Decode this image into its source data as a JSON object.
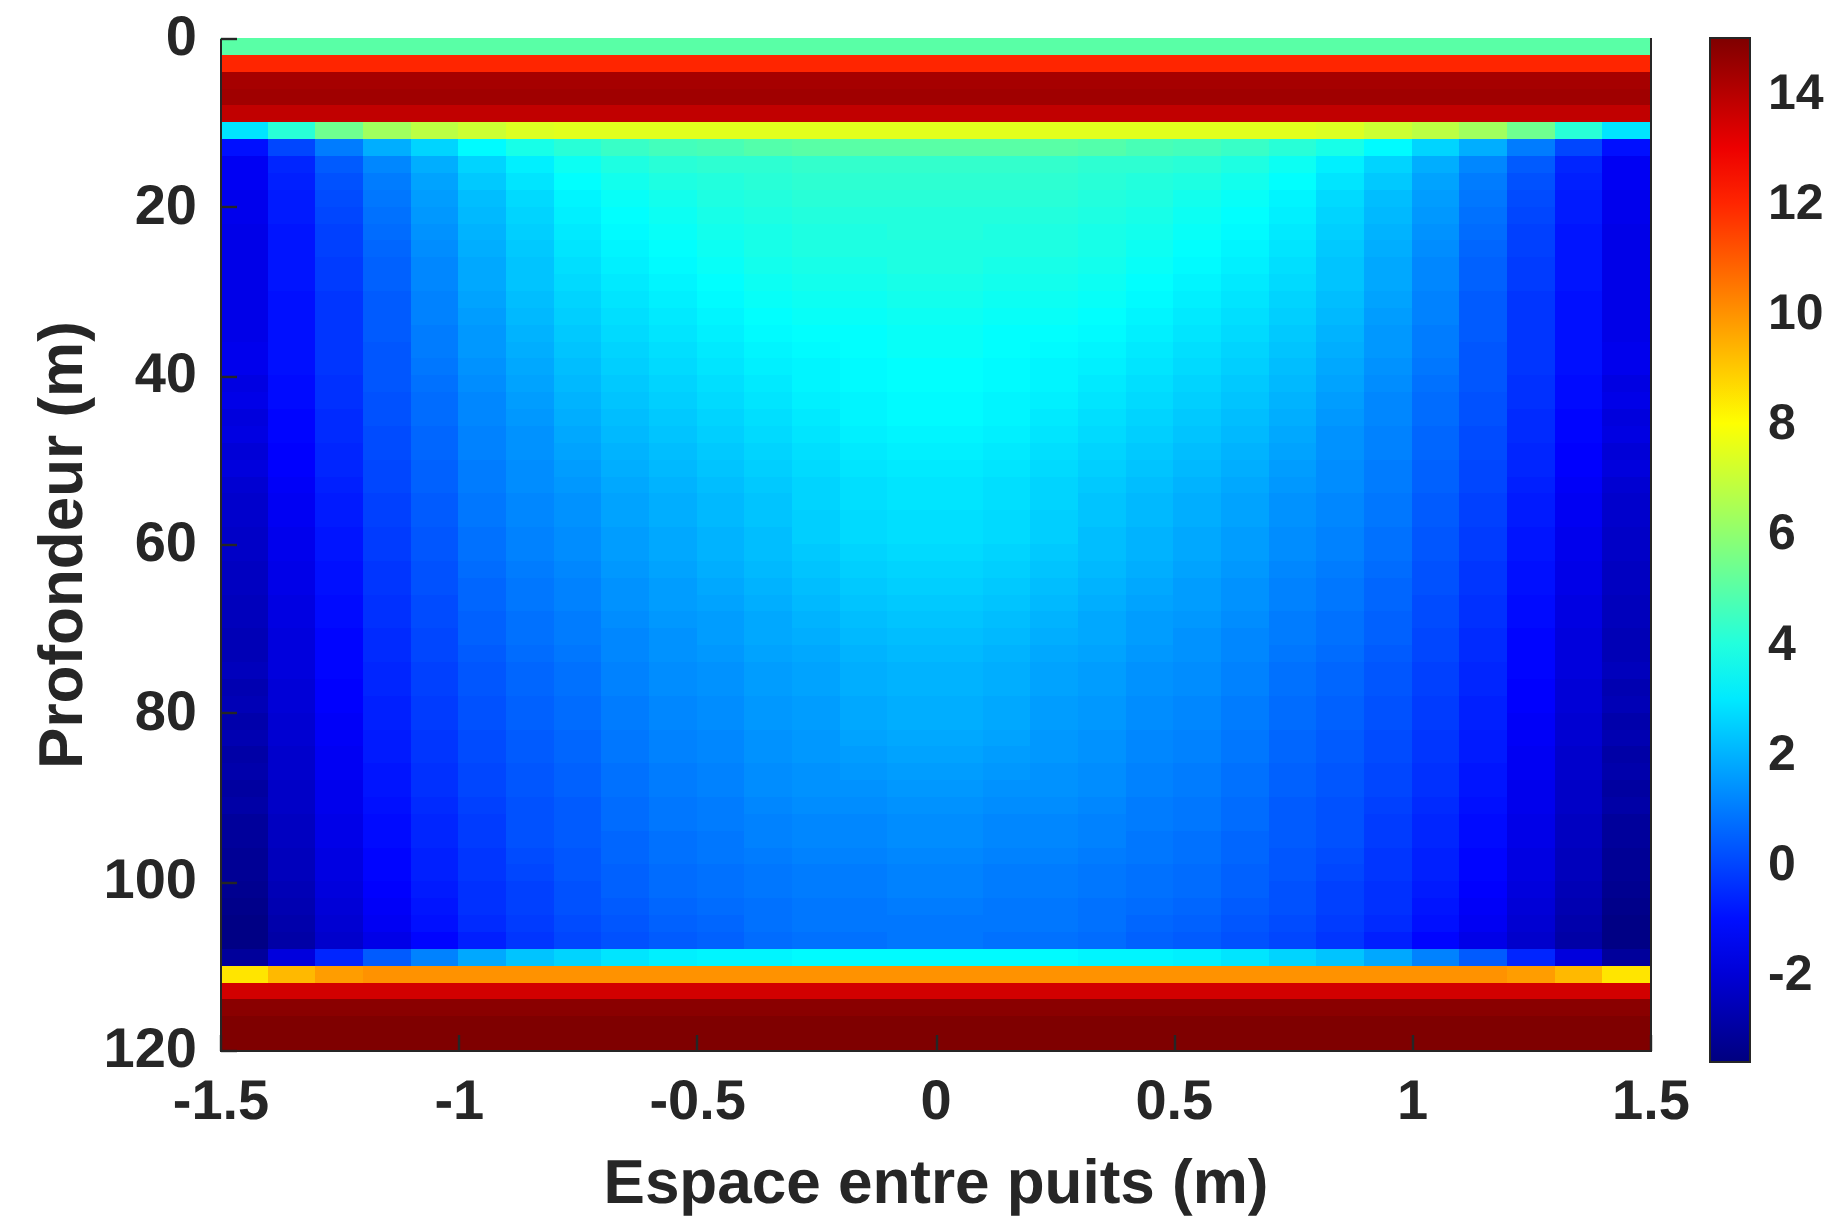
{
  "chart_data": {
    "type": "heatmap",
    "xlabel": "Espace entre puits (m)",
    "ylabel": "Profondeur (m)",
    "xlim": [
      -1.5,
      1.5
    ],
    "xticks": [
      -1.5,
      -1,
      -0.5,
      0,
      0.5,
      1,
      1.5
    ],
    "ylim": [
      120,
      0
    ],
    "yticks": [
      0,
      20,
      40,
      60,
      80,
      100,
      120
    ],
    "clim": [
      -3.6,
      15
    ],
    "cticks": [
      -2,
      0,
      2,
      4,
      6,
      8,
      10,
      12,
      14
    ],
    "cells": [
      [
        5,
        5,
        5,
        5,
        5,
        5,
        5,
        5,
        5,
        5,
        5,
        5,
        5,
        5,
        5,
        5,
        5,
        5,
        5,
        5,
        5,
        5,
        5,
        5,
        5,
        5,
        5,
        5,
        5,
        5
      ],
      [
        12,
        12,
        12,
        12,
        12,
        12,
        12,
        12,
        12,
        12,
        12,
        12,
        12,
        12,
        12,
        12,
        12,
        12,
        12,
        12,
        12,
        12,
        12,
        12,
        12,
        12,
        12,
        12,
        12,
        12
      ],
      [
        14.3,
        14.3,
        14.3,
        14.3,
        14.3,
        14.3,
        14.3,
        14.3,
        14.3,
        14.3,
        14.3,
        14.3,
        14.3,
        14.3,
        14.3,
        14.3,
        14.3,
        14.3,
        14.3,
        14.3,
        14.3,
        14.3,
        14.3,
        14.3,
        14.3,
        14.3,
        14.3,
        14.3,
        14.3,
        14.3
      ],
      [
        14.4,
        14.4,
        14.4,
        14.4,
        14.4,
        14.4,
        14.4,
        14.4,
        14.4,
        14.4,
        14.4,
        14.4,
        14.4,
        14.4,
        14.4,
        14.4,
        14.4,
        14.4,
        14.4,
        14.4,
        14.4,
        14.4,
        14.4,
        14.4,
        14.4,
        14.4,
        14.4,
        14.4,
        14.4,
        14.4
      ],
      [
        13.8,
        13.8,
        13.8,
        13.8,
        13.8,
        13.8,
        13.8,
        13.8,
        13.8,
        13.8,
        13.8,
        13.8,
        13.8,
        13.8,
        13.8,
        13.8,
        13.8,
        13.8,
        13.8,
        13.8,
        13.8,
        13.8,
        13.8,
        13.8,
        13.8,
        13.8,
        13.8,
        13.8,
        13.8,
        13.8
      ],
      [
        2.9,
        4.1,
        5.4,
        6.3,
        6.8,
        7.1,
        7.4,
        7.5,
        7.5,
        7.5,
        7.5,
        7.5,
        7.5,
        7.5,
        7.5,
        7.5,
        7.5,
        7.5,
        7.5,
        7.5,
        7.5,
        7.5,
        7.5,
        7.4,
        7.1,
        6.8,
        6.3,
        5.4,
        4.1,
        2.9
      ],
      [
        -1,
        0,
        1,
        1.9,
        2.6,
        3.3,
        3.8,
        4.1,
        4.4,
        4.6,
        4.7,
        4.9,
        5,
        5,
        5,
        5,
        5,
        5,
        4.9,
        4.7,
        4.6,
        4.4,
        4.1,
        3.8,
        3.3,
        2.6,
        1.9,
        1,
        0,
        -1
      ],
      [
        -1.5,
        -0.6,
        0.4,
        1.2,
        1.9,
        2.6,
        3.1,
        3.6,
        3.9,
        4.1,
        4.2,
        4.2,
        4.3,
        4.3,
        4.3,
        4.3,
        4.3,
        4.3,
        4.2,
        4.2,
        4.1,
        3.9,
        3.6,
        3.1,
        2.6,
        1.9,
        1.2,
        0.4,
        -0.6,
        -1.5
      ],
      [
        -1.5,
        -0.7,
        0.2,
        1,
        1.7,
        2.4,
        2.9,
        3.4,
        3.7,
        3.9,
        4,
        4.1,
        4.2,
        4.2,
        4.2,
        4.2,
        4.2,
        4.2,
        4.1,
        4,
        3.9,
        3.7,
        3.4,
        2.9,
        2.4,
        1.7,
        1,
        0.2,
        -0.7,
        -1.5
      ],
      [
        -1.6,
        -0.8,
        0.1,
        0.9,
        1.6,
        2.2,
        2.7,
        3.2,
        3.5,
        3.7,
        3.9,
        4,
        4.1,
        4.1,
        4.1,
        4.1,
        4.1,
        4.1,
        4,
        3.9,
        3.7,
        3.5,
        3.2,
        2.7,
        2.2,
        1.6,
        0.9,
        0.1,
        -0.8,
        -1.6
      ],
      [
        -1.6,
        -0.8,
        0,
        0.8,
        1.5,
        2.1,
        2.6,
        3.1,
        3.4,
        3.6,
        3.8,
        3.9,
        4,
        4,
        4,
        4,
        4,
        4,
        3.9,
        3.8,
        3.6,
        3.4,
        3.1,
        2.6,
        2.1,
        1.5,
        0.8,
        0,
        -0.8,
        -1.6
      ],
      [
        -1.7,
        -0.9,
        -0.1,
        0.7,
        1.4,
        2,
        2.5,
        3,
        3.3,
        3.5,
        3.7,
        3.8,
        3.9,
        3.9,
        4,
        4,
        3.9,
        3.9,
        3.8,
        3.7,
        3.5,
        3.3,
        3,
        2.5,
        2,
        1.4,
        0.7,
        -0.1,
        -0.9,
        -1.7
      ],
      [
        -1.7,
        -0.9,
        -0.1,
        0.6,
        1.3,
        1.9,
        2.4,
        2.9,
        3.2,
        3.4,
        3.6,
        3.8,
        3.9,
        3.9,
        3.9,
        3.9,
        3.9,
        3.9,
        3.8,
        3.6,
        3.4,
        3.2,
        2.9,
        2.4,
        1.9,
        1.3,
        0.6,
        -0.1,
        -0.9,
        -1.7
      ],
      [
        -1.7,
        -0.9,
        -0.2,
        0.5,
        1.2,
        1.8,
        2.3,
        2.8,
        3.1,
        3.3,
        3.5,
        3.7,
        3.8,
        3.8,
        3.9,
        3.9,
        3.8,
        3.8,
        3.7,
        3.5,
        3.3,
        3.1,
        2.8,
        2.3,
        1.8,
        1.2,
        0.5,
        -0.2,
        -0.9,
        -1.7
      ],
      [
        -1.7,
        -0.9,
        -0.2,
        0.5,
        1.2,
        1.8,
        2.3,
        2.7,
        3,
        3.2,
        3.4,
        3.6,
        3.7,
        3.7,
        3.8,
        3.8,
        3.7,
        3.7,
        3.6,
        3.4,
        3.2,
        3,
        2.7,
        2.3,
        1.8,
        1.2,
        0.5,
        -0.2,
        -0.9,
        -1.7
      ],
      [
        -1.7,
        -1,
        -0.3,
        0.4,
        1.1,
        1.7,
        2.2,
        2.6,
        2.9,
        3.1,
        3.3,
        3.5,
        3.6,
        3.6,
        3.7,
        3.7,
        3.6,
        3.6,
        3.5,
        3.3,
        3.1,
        2.9,
        2.6,
        2.2,
        1.7,
        1.1,
        0.4,
        -0.3,
        -1,
        -1.7
      ],
      [
        -1.7,
        -1,
        -0.3,
        0.4,
        1.1,
        1.6,
        2.1,
        2.5,
        2.8,
        3,
        3.2,
        3.4,
        3.5,
        3.5,
        3.6,
        3.6,
        3.5,
        3.5,
        3.4,
        3.2,
        3,
        2.8,
        2.5,
        2.1,
        1.6,
        1.1,
        0.4,
        -0.3,
        -1,
        -1.7
      ],
      [
        -1.7,
        -1,
        -0.3,
        0.4,
        1,
        1.5,
        2,
        2.4,
        2.7,
        2.9,
        3.1,
        3.3,
        3.4,
        3.4,
        3.5,
        3.5,
        3.4,
        3.4,
        3.3,
        3.1,
        2.9,
        2.7,
        2.4,
        2,
        1.5,
        1,
        0.4,
        -0.3,
        -1,
        -1.7
      ],
      [
        -1.6,
        -1,
        -0.3,
        0.3,
        1,
        1.5,
        1.9,
        2.3,
        2.6,
        2.8,
        3,
        3.2,
        3.3,
        3.4,
        3.5,
        3.5,
        3.4,
        3.3,
        3.2,
        3,
        2.8,
        2.6,
        2.3,
        1.9,
        1.5,
        1,
        0.3,
        -0.3,
        -1,
        -1.6
      ],
      [
        -1.6,
        -1,
        -0.3,
        0.3,
        0.9,
        1.4,
        1.8,
        2.2,
        2.5,
        2.7,
        2.9,
        3.1,
        3.2,
        3.3,
        3.4,
        3.4,
        3.3,
        3.2,
        3.1,
        2.9,
        2.7,
        2.5,
        2.2,
        1.8,
        1.4,
        0.9,
        0.3,
        -0.3,
        -1,
        -1.6
      ],
      [
        -1.8,
        -1.1,
        -0.4,
        0.3,
        0.8,
        1.3,
        1.7,
        2.1,
        2.4,
        2.6,
        2.8,
        3,
        3.2,
        3.3,
        3.4,
        3.4,
        3.3,
        3.2,
        3,
        2.8,
        2.6,
        2.4,
        2.1,
        1.7,
        1.3,
        0.8,
        0.3,
        -0.4,
        -1.1,
        -1.8
      ],
      [
        -1.7,
        -1.1,
        -0.4,
        0.2,
        0.7,
        1.2,
        1.6,
        2,
        2.3,
        2.5,
        2.7,
        2.9,
        3.1,
        3.2,
        3.3,
        3.3,
        3.2,
        3.1,
        2.9,
        2.7,
        2.5,
        2.3,
        2,
        1.6,
        1.2,
        0.7,
        0.2,
        -0.4,
        -1.1,
        -1.7
      ],
      [
        -1.9,
        -1.2,
        -0.5,
        0.2,
        0.7,
        1.2,
        1.5,
        1.9,
        2.2,
        2.4,
        2.6,
        2.8,
        3,
        3.2,
        3.3,
        3.3,
        3.2,
        3,
        2.8,
        2.6,
        2.4,
        2.2,
        1.9,
        1.5,
        1.2,
        0.7,
        0.2,
        -0.5,
        -1.2,
        -1.9
      ],
      [
        -1.8,
        -1.2,
        -0.5,
        0.1,
        0.6,
        1.1,
        1.4,
        1.8,
        2.1,
        2.3,
        2.5,
        2.7,
        2.9,
        3.1,
        3.2,
        3.2,
        3.1,
        2.9,
        2.7,
        2.5,
        2.3,
        2.1,
        1.8,
        1.4,
        1.1,
        0.6,
        0.1,
        -0.5,
        -1.2,
        -1.8
      ],
      [
        -2,
        -1.3,
        -0.6,
        0.1,
        0.6,
        1.1,
        1.4,
        1.7,
        2,
        2.2,
        2.4,
        2.6,
        2.8,
        3,
        3.1,
        3.1,
        3,
        2.8,
        2.6,
        2.4,
        2.2,
        2,
        1.7,
        1.4,
        1.1,
        0.6,
        0.1,
        -0.6,
        -1.3,
        -2
      ],
      [
        -1.9,
        -1.3,
        -0.6,
        0,
        0.5,
        1,
        1.3,
        1.6,
        1.9,
        2.1,
        2.3,
        2.5,
        2.7,
        2.9,
        3,
        3,
        2.9,
        2.7,
        2.5,
        2.3,
        2.1,
        1.9,
        1.6,
        1.3,
        1,
        0.5,
        0,
        -0.6,
        -1.3,
        -1.9
      ],
      [
        -2.1,
        -1.4,
        -0.7,
        0,
        0.5,
        1,
        1.3,
        1.5,
        1.8,
        2,
        2.2,
        2.4,
        2.6,
        2.8,
        2.9,
        2.9,
        2.8,
        2.6,
        2.4,
        2.2,
        2,
        1.8,
        1.5,
        1.3,
        1,
        0.5,
        0,
        -0.7,
        -1.4,
        -2.1
      ],
      [
        -2.2,
        -1.5,
        -0.8,
        -0.1,
        0.4,
        0.9,
        1.2,
        1.4,
        1.7,
        1.9,
        2.1,
        2.3,
        2.6,
        2.8,
        2.9,
        2.9,
        2.8,
        2.6,
        2.3,
        2.1,
        1.9,
        1.7,
        1.4,
        1.2,
        0.9,
        0.4,
        -0.1,
        -0.8,
        -1.5,
        -2.2
      ],
      [
        -2.2,
        -1.5,
        -0.8,
        -0.1,
        0.4,
        0.9,
        1.2,
        1.4,
        1.7,
        1.9,
        2.1,
        2.3,
        2.5,
        2.7,
        2.8,
        2.8,
        2.7,
        2.5,
        2.3,
        2.1,
        1.9,
        1.7,
        1.4,
        1.2,
        0.9,
        0.4,
        -0.1,
        -0.8,
        -1.5,
        -2.2
      ],
      [
        -2.3,
        -1.6,
        -0.9,
        -0.2,
        0.3,
        0.8,
        1.1,
        1.3,
        1.6,
        1.8,
        2,
        2.2,
        2.5,
        2.7,
        2.8,
        2.8,
        2.7,
        2.5,
        2.2,
        2,
        1.8,
        1.6,
        1.3,
        1.1,
        0.8,
        0.3,
        -0.2,
        -0.9,
        -1.6,
        -2.3
      ],
      [
        -2.3,
        -1.6,
        -0.9,
        -0.2,
        0.3,
        0.8,
        1.1,
        1.3,
        1.6,
        1.8,
        2,
        2.2,
        2.4,
        2.6,
        2.7,
        2.7,
        2.6,
        2.4,
        2.2,
        2,
        1.8,
        1.6,
        1.3,
        1.1,
        0.8,
        0.3,
        -0.2,
        -0.9,
        -1.6,
        -2.3
      ],
      [
        -2.4,
        -1.7,
        -1,
        -0.3,
        0.2,
        0.7,
        1,
        1.2,
        1.5,
        1.7,
        1.9,
        2.1,
        2.3,
        2.5,
        2.6,
        2.6,
        2.5,
        2.3,
        2.1,
        1.9,
        1.7,
        1.5,
        1.2,
        1,
        0.7,
        0.2,
        -0.3,
        -1,
        -1.7,
        -2.4
      ],
      [
        -2.4,
        -1.7,
        -1,
        -0.3,
        0.2,
        0.6,
        0.9,
        1.1,
        1.4,
        1.6,
        1.8,
        2,
        2.2,
        2.4,
        2.5,
        2.5,
        2.4,
        2.2,
        2,
        1.8,
        1.6,
        1.4,
        1.1,
        0.9,
        0.6,
        0.2,
        -0.3,
        -1,
        -1.7,
        -2.4
      ],
      [
        -2.5,
        -1.8,
        -1.1,
        -0.4,
        0.1,
        0.6,
        0.9,
        1.1,
        1.4,
        1.6,
        1.7,
        1.9,
        2.1,
        2.3,
        2.4,
        2.4,
        2.3,
        2.1,
        1.9,
        1.7,
        1.6,
        1.4,
        1.1,
        0.9,
        0.6,
        0.1,
        -0.4,
        -1.1,
        -1.8,
        -2.5
      ],
      [
        -2.5,
        -1.8,
        -1.1,
        -0.4,
        0.1,
        0.5,
        0.8,
        1,
        1.3,
        1.5,
        1.6,
        1.8,
        2,
        2.2,
        2.3,
        2.3,
        2.2,
        2,
        1.8,
        1.6,
        1.5,
        1.3,
        1,
        0.8,
        0.5,
        0.1,
        -0.4,
        -1.1,
        -1.8,
        -2.5
      ],
      [
        -2.6,
        -1.9,
        -1.2,
        -0.5,
        0,
        0.5,
        0.8,
        1,
        1.2,
        1.4,
        1.6,
        1.8,
        1.9,
        2.1,
        2.2,
        2.2,
        2.1,
        1.9,
        1.8,
        1.6,
        1.4,
        1.2,
        1,
        0.8,
        0.5,
        0,
        -0.5,
        -1.2,
        -1.9,
        -2.6
      ],
      [
        -2.6,
        -1.9,
        -1.2,
        -0.5,
        0,
        0.4,
        0.7,
        0.9,
        1.2,
        1.4,
        1.5,
        1.7,
        1.8,
        2,
        2.1,
        2.1,
        2,
        1.8,
        1.7,
        1.5,
        1.4,
        1.2,
        0.9,
        0.7,
        0.4,
        0,
        -0.5,
        -1.2,
        -1.9,
        -2.6
      ],
      [
        -2.5,
        -1.9,
        -1.2,
        -0.6,
        -0.1,
        0.3,
        0.6,
        0.8,
        1.1,
        1.3,
        1.4,
        1.6,
        1.7,
        1.9,
        2,
        2,
        1.9,
        1.7,
        1.6,
        1.4,
        1.3,
        1.1,
        0.8,
        0.6,
        0.3,
        -0.1,
        -0.6,
        -1.2,
        -1.9,
        -2.5
      ],
      [
        -2.7,
        -2,
        -1.3,
        -0.6,
        -0.1,
        0.3,
        0.6,
        0.8,
        1.1,
        1.3,
        1.4,
        1.6,
        1.7,
        1.9,
        2,
        2,
        1.9,
        1.7,
        1.6,
        1.4,
        1.3,
        1.1,
        0.8,
        0.6,
        0.3,
        -0.1,
        -0.6,
        -1.3,
        -2,
        -2.7
      ],
      [
        -2.6,
        -2,
        -1.3,
        -0.7,
        -0.2,
        0.2,
        0.5,
        0.7,
        1,
        1.2,
        1.3,
        1.5,
        1.6,
        1.8,
        1.9,
        1.9,
        1.8,
        1.6,
        1.5,
        1.3,
        1.2,
        1,
        0.7,
        0.5,
        0.2,
        -0.2,
        -0.7,
        -1.3,
        -2,
        -2.6
      ],
      [
        -2.8,
        -2.1,
        -1.4,
        -0.7,
        -0.2,
        0.2,
        0.5,
        0.7,
        1,
        1.2,
        1.3,
        1.5,
        1.6,
        1.8,
        1.9,
        1.9,
        1.8,
        1.6,
        1.5,
        1.3,
        1.2,
        1,
        0.7,
        0.5,
        0.2,
        -0.2,
        -0.7,
        -1.4,
        -2.1,
        -2.8
      ],
      [
        -2.7,
        -2.1,
        -1.4,
        -0.8,
        -0.3,
        0.1,
        0.4,
        0.6,
        0.9,
        1.1,
        1.2,
        1.4,
        1.5,
        1.7,
        1.8,
        1.8,
        1.7,
        1.5,
        1.4,
        1.2,
        1.1,
        0.9,
        0.6,
        0.4,
        0.1,
        -0.3,
        -0.8,
        -1.4,
        -2.1,
        -2.7
      ],
      [
        -2.9,
        -2.2,
        -1.5,
        -0.8,
        -0.3,
        0.1,
        0.4,
        0.6,
        0.9,
        1.1,
        1.2,
        1.4,
        1.5,
        1.6,
        1.7,
        1.7,
        1.6,
        1.5,
        1.4,
        1.2,
        1.1,
        0.9,
        0.6,
        0.4,
        0.1,
        -0.3,
        -0.8,
        -1.5,
        -2.2,
        -2.9
      ],
      [
        -2.8,
        -2.2,
        -1.5,
        -0.9,
        -0.4,
        0,
        0.3,
        0.5,
        0.8,
        1,
        1.1,
        1.3,
        1.4,
        1.5,
        1.6,
        1.6,
        1.5,
        1.4,
        1.3,
        1.1,
        1,
        0.8,
        0.5,
        0.3,
        0,
        -0.4,
        -0.9,
        -1.5,
        -2.2,
        -2.8
      ],
      [
        -3,
        -2.3,
        -1.6,
        -0.9,
        -0.4,
        0,
        0.3,
        0.5,
        0.8,
        1,
        1.1,
        1.3,
        1.4,
        1.4,
        1.5,
        1.5,
        1.4,
        1.4,
        1.3,
        1.1,
        1,
        0.8,
        0.5,
        0.3,
        0,
        -0.4,
        -0.9,
        -1.6,
        -2.3,
        -3
      ],
      [
        -2.9,
        -2.3,
        -1.6,
        -1,
        -0.5,
        -0.1,
        0.2,
        0.4,
        0.7,
        0.9,
        1,
        1.2,
        1.3,
        1.3,
        1.4,
        1.4,
        1.3,
        1.3,
        1.2,
        1,
        0.9,
        0.7,
        0.4,
        0.2,
        -0.1,
        -0.5,
        -1,
        -1.6,
        -2.3,
        -2.9
      ],
      [
        -3.1,
        -2.4,
        -1.7,
        -1.1,
        -0.6,
        -0.2,
        0.2,
        0.4,
        0.7,
        0.9,
        1,
        1.1,
        1.2,
        1.2,
        1.3,
        1.3,
        1.2,
        1.2,
        1.1,
        1,
        0.9,
        0.7,
        0.4,
        0.2,
        -0.2,
        -0.6,
        -1.1,
        -1.7,
        -2.4,
        -3.1
      ],
      [
        -3.1,
        -2.4,
        -1.7,
        -1.1,
        -0.6,
        -0.2,
        0.2,
        0.4,
        0.6,
        0.8,
        0.9,
        1.1,
        1.2,
        1.2,
        1.3,
        1.3,
        1.2,
        1.2,
        1.1,
        0.9,
        0.8,
        0.6,
        0.4,
        0.2,
        -0.2,
        -0.6,
        -1.1,
        -1.7,
        -2.4,
        -3.1
      ],
      [
        -3.2,
        -2.5,
        -1.8,
        -1.2,
        -0.7,
        -0.3,
        0.1,
        0.3,
        0.6,
        0.8,
        0.9,
        1,
        1.1,
        1.1,
        1.2,
        1.2,
        1.1,
        1.1,
        1,
        0.9,
        0.8,
        0.6,
        0.3,
        0.1,
        -0.3,
        -0.7,
        -1.2,
        -1.8,
        -2.5,
        -3.2
      ],
      [
        -3.2,
        -2.5,
        -1.8,
        -1.2,
        -0.7,
        -0.3,
        0,
        0.3,
        0.5,
        0.7,
        0.8,
        0.9,
        1,
        1,
        1.1,
        1.1,
        1,
        1,
        0.9,
        0.8,
        0.7,
        0.5,
        0.3,
        0,
        -0.3,
        -0.7,
        -1.2,
        -1.8,
        -2.5,
        -3.2
      ],
      [
        -3.3,
        -2.6,
        -1.9,
        -1.3,
        -0.8,
        -0.4,
        -0.1,
        0.2,
        0.5,
        0.7,
        0.8,
        0.9,
        1,
        1,
        1.1,
        1.1,
        1,
        1,
        0.9,
        0.8,
        0.7,
        0.5,
        0.2,
        -0.1,
        -0.4,
        -0.8,
        -1.3,
        -1.9,
        -2.6,
        -3.3
      ],
      [
        -3.4,
        -2.7,
        -2,
        -1.4,
        -0.9,
        -0.4,
        -0.1,
        0.2,
        0.4,
        0.6,
        0.7,
        0.8,
        0.9,
        0.9,
        1,
        1,
        0.9,
        0.9,
        0.8,
        0.7,
        0.6,
        0.4,
        0.2,
        -0.1,
        -0.4,
        -0.9,
        -1.4,
        -2,
        -2.7,
        -3.4
      ],
      [
        -3.5,
        -2.8,
        -2.1,
        -1.5,
        -1,
        -0.5,
        -0.2,
        0.1,
        0.3,
        0.5,
        0.6,
        0.8,
        0.9,
        0.9,
        0.9,
        0.9,
        0.9,
        0.9,
        0.8,
        0.6,
        0.5,
        0.3,
        0.1,
        -0.2,
        -0.5,
        -1,
        -1.5,
        -2.1,
        -2.8,
        -3.5
      ],
      [
        -3.5,
        -2.9,
        -2.2,
        -1.7,
        -1.2,
        -0.7,
        -0.3,
        0,
        0.2,
        0.4,
        0.5,
        0.7,
        0.8,
        0.8,
        0.9,
        0.9,
        0.8,
        0.8,
        0.7,
        0.5,
        0.4,
        0.2,
        0,
        -0.3,
        -0.7,
        -1.2,
        -1.7,
        -2.2,
        -2.9,
        -3.5
      ],
      [
        -3.1,
        -1.9,
        -0.6,
        0.4,
        1.1,
        1.8,
        2.3,
        2.6,
        2.9,
        3.1,
        3.2,
        3.2,
        3.3,
        3.3,
        3.3,
        3.3,
        3.3,
        3.3,
        3.2,
        3.2,
        3.1,
        2.9,
        2.6,
        2.3,
        1.8,
        1.1,
        0.4,
        -0.6,
        -1.9,
        -3.1
      ],
      [
        8.5,
        9.3,
        9.8,
        10,
        10,
        10,
        10,
        10,
        10,
        10,
        10,
        10,
        10,
        10,
        10,
        10,
        10,
        10,
        10,
        10,
        10,
        10,
        10,
        10,
        10,
        10,
        10,
        9.8,
        9.3,
        8.5
      ],
      [
        13.5,
        13.5,
        13.5,
        13.5,
        13.5,
        13.5,
        13.5,
        13.5,
        13.5,
        13.5,
        13.5,
        13.5,
        13.5,
        13.5,
        13.5,
        13.5,
        13.5,
        13.5,
        13.5,
        13.5,
        13.5,
        13.5,
        13.5,
        13.5,
        13.5,
        13.5,
        13.5,
        13.5,
        13.5,
        13.5
      ],
      [
        14.8,
        14.8,
        14.8,
        14.8,
        14.8,
        14.8,
        14.8,
        14.8,
        14.8,
        14.8,
        14.8,
        14.8,
        14.8,
        14.8,
        14.8,
        14.8,
        14.8,
        14.8,
        14.8,
        14.8,
        14.8,
        14.8,
        14.8,
        14.8,
        14.8,
        14.8,
        14.8,
        14.8,
        14.8,
        14.8
      ],
      [
        15,
        15,
        15,
        15,
        15,
        15,
        15,
        15,
        15,
        15,
        15,
        15,
        15,
        15,
        15,
        15,
        15,
        15,
        15,
        15,
        15,
        15,
        15,
        15,
        15,
        15,
        15,
        15,
        15,
        15
      ],
      [
        15,
        15,
        15,
        15,
        15,
        15,
        15,
        15,
        15,
        15,
        15,
        15,
        15,
        15,
        15,
        15,
        15,
        15,
        15,
        15,
        15,
        15,
        15,
        15,
        15,
        15,
        15,
        15,
        15,
        15
      ]
    ]
  }
}
